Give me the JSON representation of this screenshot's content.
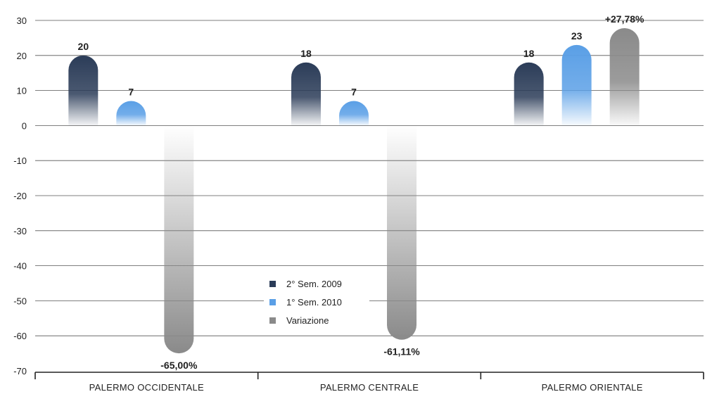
{
  "chart_data": {
    "type": "bar",
    "title": "",
    "xlabel": "",
    "ylabel": "",
    "ylim": [
      -70,
      30
    ],
    "yticks": [
      30,
      20,
      10,
      0,
      -10,
      -20,
      -30,
      -40,
      -50,
      -60,
      -70
    ],
    "grid": true,
    "legend_position": "center",
    "categories": [
      "PALERMO OCCIDENTALE",
      "PALERMO CENTRALE",
      "PALERMO ORIENTALE"
    ],
    "series": [
      {
        "name": "2° Sem. 2009",
        "values": [
          20,
          18,
          18
        ],
        "labels": [
          "20",
          "18",
          "18"
        ],
        "color": "#2b3c58"
      },
      {
        "name": "1° Sem. 2010",
        "values": [
          7,
          7,
          23
        ],
        "labels": [
          "7",
          "7",
          "23"
        ],
        "color": "#5a9fe6"
      },
      {
        "name": "Variazione",
        "values": [
          -65.0,
          -61.11,
          27.78
        ],
        "labels": [
          "-65,00%",
          "-61,11%",
          "+27,78%"
        ],
        "color": "#8a8a8a"
      }
    ]
  }
}
